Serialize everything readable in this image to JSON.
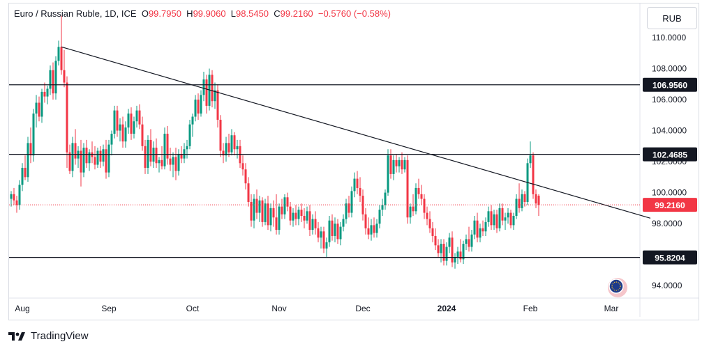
{
  "legend": {
    "title": "Euro / Russian Ruble, 1D, ICE",
    "o_label": "O",
    "o": "99.7950",
    "h_label": "H",
    "h": "99.9060",
    "l_label": "L",
    "l": "98.5450",
    "c_label": "C",
    "c": "99.2160",
    "change": "−0.5760 (−0.58%)"
  },
  "currency_button": "RUB",
  "brand": "TradingView",
  "colors": {
    "up": "#089981",
    "down": "#f23645",
    "line": "#131722",
    "axis_text": "#131722",
    "badge_current": "#f23645"
  },
  "chart_data": {
    "type": "candlestick",
    "ylim": [
      93.2,
      112.2
    ],
    "y_ticks": [
      {
        "value": 110,
        "label": "110.0000"
      },
      {
        "value": 108,
        "label": "108.0000"
      },
      {
        "value": 106,
        "label": "106.0000"
      },
      {
        "value": 104,
        "label": "104.0000"
      },
      {
        "value": 102,
        "label": "102.0000"
      },
      {
        "value": 100,
        "label": "100.0000"
      },
      {
        "value": 98,
        "label": "98.0000"
      },
      {
        "value": 94,
        "label": "94.0000"
      }
    ],
    "x_ticks": [
      {
        "label": "Aug",
        "bar": 4,
        "bold": false
      },
      {
        "label": "Sep",
        "bar": 35,
        "bold": false
      },
      {
        "label": "Oct",
        "bar": 65,
        "bold": false
      },
      {
        "label": "Nov",
        "bar": 96,
        "bold": false
      },
      {
        "label": "Dec",
        "bar": 126,
        "bold": false
      },
      {
        "label": "2024",
        "bar": 156,
        "bold": true
      },
      {
        "label": "Feb",
        "bar": 186,
        "bold": false
      },
      {
        "label": "Mar",
        "bar": 215,
        "bold": false
      }
    ],
    "horizontal_levels": [
      {
        "value": 106.956,
        "label": "106.9560"
      },
      {
        "value": 102.4685,
        "label": "102.4685"
      },
      {
        "value": 95.8204,
        "label": "95.8204"
      }
    ],
    "current_price": {
      "value": 99.216,
      "label": "99.2160"
    },
    "trendline": {
      "from": {
        "bar": 18,
        "value": 109.4
      },
      "to": {
        "bar": 229,
        "value": 98.35
      }
    },
    "ohlc": [
      [
        99.6,
        100.1,
        99.1,
        99.9
      ],
      [
        99.9,
        100.3,
        99.2,
        99.5
      ],
      [
        99.5,
        99.8,
        98.7,
        99.2
      ],
      [
        99.2,
        100.8,
        98.9,
        100.5
      ],
      [
        100.5,
        101.9,
        100.1,
        101.6
      ],
      [
        101.6,
        102.4,
        100.8,
        101.0
      ],
      [
        101.0,
        103.6,
        100.7,
        103.2
      ],
      [
        103.2,
        104.2,
        101.9,
        102.4
      ],
      [
        102.4,
        105.4,
        102.0,
        105.1
      ],
      [
        105.1,
        106.3,
        104.2,
        105.8
      ],
      [
        105.8,
        106.2,
        104.6,
        104.9
      ],
      [
        104.9,
        106.7,
        104.5,
        106.5
      ],
      [
        106.5,
        107.1,
        105.8,
        106.2
      ],
      [
        106.2,
        106.9,
        105.7,
        106.7
      ],
      [
        106.7,
        108.2,
        106.3,
        107.9
      ],
      [
        107.9,
        108.4,
        106.0,
        106.4
      ],
      [
        106.4,
        108.8,
        106.0,
        108.5
      ],
      [
        108.5,
        109.8,
        108.2,
        109.4
      ],
      [
        109.4,
        111.4,
        107.6,
        107.9
      ],
      [
        107.9,
        109.2,
        106.8,
        107.1
      ],
      [
        107.1,
        107.5,
        101.6,
        102.6
      ],
      [
        102.6,
        103.1,
        101.2,
        101.4
      ],
      [
        101.4,
        103.6,
        101.0,
        103.2
      ],
      [
        103.2,
        104.1,
        101.8,
        102.2
      ],
      [
        102.2,
        103.0,
        101.6,
        102.7
      ],
      [
        102.7,
        103.4,
        100.4,
        101.3
      ],
      [
        101.3,
        103.2,
        101.0,
        102.9
      ],
      [
        102.9,
        103.4,
        101.6,
        101.9
      ],
      [
        101.9,
        102.8,
        101.4,
        102.6
      ],
      [
        102.6,
        103.3,
        101.9,
        102.3
      ],
      [
        102.3,
        103.0,
        101.5,
        101.8
      ],
      [
        101.8,
        102.9,
        101.6,
        102.7
      ],
      [
        102.7,
        103.0,
        101.6,
        102.0
      ],
      [
        102.0,
        103.1,
        101.7,
        102.8
      ],
      [
        102.8,
        103.4,
        100.9,
        101.3
      ],
      [
        101.3,
        103.4,
        101.0,
        103.1
      ],
      [
        103.1,
        104.0,
        102.4,
        103.8
      ],
      [
        103.8,
        105.6,
        103.5,
        105.3
      ],
      [
        105.3,
        105.6,
        103.6,
        104.0
      ],
      [
        104.0,
        104.8,
        103.3,
        104.4
      ],
      [
        104.4,
        104.9,
        102.9,
        103.3
      ],
      [
        103.3,
        104.6,
        102.9,
        104.2
      ],
      [
        104.2,
        105.4,
        103.8,
        105.1
      ],
      [
        105.1,
        105.5,
        103.4,
        103.8
      ],
      [
        103.8,
        104.9,
        103.5,
        104.6
      ],
      [
        104.6,
        105.6,
        104.2,
        105.3
      ],
      [
        105.3,
        105.7,
        104.1,
        104.4
      ],
      [
        104.4,
        104.9,
        102.7,
        103.0
      ],
      [
        103.0,
        103.4,
        101.2,
        101.6
      ],
      [
        101.6,
        103.7,
        101.2,
        103.4
      ],
      [
        103.4,
        104.1,
        101.7,
        102.0
      ],
      [
        102.0,
        103.3,
        101.6,
        102.9
      ],
      [
        102.9,
        103.5,
        101.6,
        101.9
      ],
      [
        101.9,
        102.3,
        101.3,
        102.1
      ],
      [
        102.1,
        103.0,
        101.5,
        101.7
      ],
      [
        101.7,
        104.2,
        101.5,
        103.8
      ],
      [
        103.8,
        104.3,
        101.8,
        102.2
      ],
      [
        102.2,
        102.9,
        101.4,
        101.8
      ],
      [
        101.8,
        102.6,
        101.0,
        102.3
      ],
      [
        102.3,
        102.9,
        100.8,
        101.4
      ],
      [
        101.4,
        102.8,
        101.1,
        102.5
      ],
      [
        102.5,
        103.0,
        101.9,
        102.2
      ],
      [
        102.2,
        103.2,
        101.9,
        102.8
      ],
      [
        102.8,
        103.4,
        102.2,
        103.0
      ],
      [
        103.0,
        104.7,
        102.8,
        104.4
      ],
      [
        104.4,
        105.1,
        103.6,
        104.9
      ],
      [
        104.9,
        106.3,
        104.6,
        106.0
      ],
      [
        106.0,
        106.4,
        104.7,
        105.1
      ],
      [
        105.1,
        106.6,
        104.9,
        106.3
      ],
      [
        106.3,
        107.8,
        105.9,
        107.3
      ],
      [
        107.3,
        107.6,
        105.1,
        105.6
      ],
      [
        105.6,
        108.0,
        105.3,
        107.6
      ],
      [
        107.6,
        107.9,
        105.5,
        105.9
      ],
      [
        105.9,
        107.1,
        105.4,
        106.6
      ],
      [
        106.6,
        107.0,
        104.2,
        104.7
      ],
      [
        104.7,
        105.0,
        102.3,
        102.7
      ],
      [
        102.7,
        103.2,
        101.9,
        102.4
      ],
      [
        102.4,
        103.6,
        102.0,
        103.2
      ],
      [
        103.2,
        103.8,
        102.3,
        102.6
      ],
      [
        102.6,
        104.1,
        102.4,
        103.7
      ],
      [
        103.7,
        103.9,
        102.4,
        102.8
      ],
      [
        102.8,
        103.4,
        102.2,
        103.0
      ],
      [
        103.0,
        103.4,
        101.6,
        101.9
      ],
      [
        101.9,
        102.4,
        101.1,
        101.5
      ],
      [
        101.5,
        101.9,
        100.2,
        100.6
      ],
      [
        100.6,
        101.0,
        99.1,
        99.4
      ],
      [
        99.4,
        99.9,
        97.8,
        98.2
      ],
      [
        98.2,
        99.9,
        97.7,
        99.6
      ],
      [
        99.6,
        100.2,
        98.3,
        98.7
      ],
      [
        98.7,
        99.8,
        98.1,
        99.5
      ],
      [
        99.5,
        99.7,
        97.8,
        98.1
      ],
      [
        98.1,
        99.6,
        97.9,
        99.3
      ],
      [
        99.3,
        99.8,
        97.6,
        97.9
      ],
      [
        97.9,
        99.3,
        97.5,
        99.0
      ],
      [
        99.0,
        99.5,
        97.8,
        98.4
      ],
      [
        98.4,
        99.9,
        97.3,
        97.6
      ],
      [
        97.6,
        99.3,
        97.3,
        99.1
      ],
      [
        99.1,
        99.6,
        98.3,
        98.6
      ],
      [
        98.6,
        99.9,
        98.3,
        99.7
      ],
      [
        99.7,
        100.0,
        98.8,
        99.1
      ],
      [
        99.1,
        99.4,
        97.9,
        98.2
      ],
      [
        98.2,
        99.0,
        97.8,
        98.7
      ],
      [
        98.7,
        99.2,
        97.9,
        98.3
      ],
      [
        98.3,
        99.1,
        97.9,
        98.9
      ],
      [
        98.9,
        99.3,
        98.1,
        98.5
      ],
      [
        98.5,
        99.0,
        97.7,
        98.2
      ],
      [
        98.2,
        99.1,
        98.0,
        98.8
      ],
      [
        98.8,
        99.2,
        97.2,
        97.6
      ],
      [
        97.6,
        98.6,
        97.3,
        98.3
      ],
      [
        98.3,
        98.8,
        97.3,
        97.7
      ],
      [
        97.7,
        98.1,
        96.8,
        97.1
      ],
      [
        97.1,
        97.8,
        96.4,
        97.5
      ],
      [
        97.5,
        97.8,
        96.1,
        96.4
      ],
      [
        96.4,
        97.1,
        95.8,
        96.8
      ],
      [
        96.8,
        98.5,
        96.5,
        98.2
      ],
      [
        98.2,
        98.6,
        96.9,
        97.2
      ],
      [
        97.2,
        98.4,
        96.8,
        98.0
      ],
      [
        98.0,
        98.3,
        96.7,
        97.0
      ],
      [
        97.0,
        98.1,
        96.6,
        97.8
      ],
      [
        97.8,
        98.6,
        97.5,
        98.3
      ],
      [
        98.3,
        99.6,
        98.0,
        99.3
      ],
      [
        99.3,
        99.8,
        98.4,
        98.7
      ],
      [
        98.7,
        100.4,
        98.4,
        100.1
      ],
      [
        100.1,
        101.3,
        99.7,
        100.9
      ],
      [
        100.9,
        101.4,
        99.9,
        100.3
      ],
      [
        100.3,
        101.0,
        99.4,
        99.8
      ],
      [
        99.8,
        100.2,
        98.2,
        98.6
      ],
      [
        98.6,
        99.0,
        97.3,
        97.7
      ],
      [
        97.7,
        98.4,
        97.0,
        97.3
      ],
      [
        97.3,
        98.3,
        96.9,
        97.9
      ],
      [
        97.9,
        98.4,
        97.1,
        97.4
      ],
      [
        97.4,
        98.3,
        97.1,
        98.0
      ],
      [
        98.0,
        99.2,
        97.7,
        98.9
      ],
      [
        98.9,
        99.6,
        98.5,
        99.2
      ],
      [
        99.2,
        100.2,
        98.9,
        100.0
      ],
      [
        100.0,
        102.8,
        99.8,
        102.4
      ],
      [
        102.4,
        102.8,
        100.9,
        101.2
      ],
      [
        101.2,
        102.4,
        100.8,
        102.1
      ],
      [
        102.1,
        102.5,
        101.3,
        101.7
      ],
      [
        101.7,
        102.3,
        101.3,
        102.1
      ],
      [
        102.1,
        102.6,
        101.2,
        101.5
      ],
      [
        101.5,
        102.3,
        101.3,
        102.1
      ],
      [
        102.1,
        102.4,
        98.0,
        98.4
      ],
      [
        98.4,
        99.3,
        98.0,
        99.1
      ],
      [
        99.1,
        99.9,
        98.5,
        98.8
      ],
      [
        98.8,
        100.6,
        98.6,
        100.3
      ],
      [
        100.3,
        100.9,
        99.6,
        99.9
      ],
      [
        99.9,
        100.5,
        99.2,
        99.6
      ],
      [
        99.6,
        99.9,
        98.3,
        98.7
      ],
      [
        98.7,
        99.1,
        97.9,
        98.3
      ],
      [
        98.3,
        98.8,
        97.4,
        97.7
      ],
      [
        97.7,
        98.1,
        96.8,
        97.2
      ],
      [
        97.2,
        97.7,
        96.3,
        96.6
      ],
      [
        96.6,
        97.0,
        95.8,
        96.1
      ],
      [
        96.1,
        97.0,
        95.5,
        96.7
      ],
      [
        96.7,
        97.0,
        95.3,
        95.6
      ],
      [
        95.6,
        96.8,
        95.3,
        96.5
      ],
      [
        96.5,
        97.4,
        96.1,
        97.1
      ],
      [
        97.1,
        97.5,
        95.2,
        95.5
      ],
      [
        95.5,
        96.1,
        95.1,
        95.8
      ],
      [
        95.8,
        96.5,
        95.4,
        96.2
      ],
      [
        96.2,
        97.0,
        95.5,
        95.7
      ],
      [
        95.7,
        96.9,
        95.4,
        96.7
      ],
      [
        96.7,
        97.3,
        96.3,
        97.0
      ],
      [
        97.0,
        97.8,
        96.2,
        96.5
      ],
      [
        96.5,
        97.6,
        96.2,
        97.3
      ],
      [
        97.3,
        98.5,
        97.0,
        98.2
      ],
      [
        98.2,
        98.7,
        96.8,
        97.1
      ],
      [
        97.1,
        98.0,
        96.8,
        97.7
      ],
      [
        97.7,
        98.2,
        97.2,
        97.5
      ],
      [
        97.5,
        98.4,
        97.2,
        98.1
      ],
      [
        98.1,
        99.1,
        97.8,
        98.8
      ],
      [
        98.8,
        99.2,
        97.6,
        97.9
      ],
      [
        97.9,
        98.9,
        97.6,
        98.6
      ],
      [
        98.6,
        98.9,
        97.4,
        97.7
      ],
      [
        97.7,
        99.3,
        97.5,
        99.0
      ],
      [
        99.0,
        99.3,
        97.9,
        98.2
      ],
      [
        98.2,
        98.7,
        97.6,
        98.4
      ],
      [
        98.4,
        99.0,
        98.0,
        98.7
      ],
      [
        98.7,
        98.9,
        97.7,
        97.9
      ],
      [
        97.9,
        98.7,
        97.6,
        98.5
      ],
      [
        98.5,
        99.9,
        98.3,
        99.6
      ],
      [
        99.6,
        100.6,
        98.7,
        99.0
      ],
      [
        99.0,
        100.2,
        98.8,
        99.9
      ],
      [
        99.9,
        100.1,
        99.1,
        99.4
      ],
      [
        99.4,
        102.2,
        99.2,
        101.9
      ],
      [
        101.9,
        103.3,
        101.6,
        102.4
      ],
      [
        102.4,
        102.6,
        99.6,
        99.9
      ],
      [
        99.9,
        100.2,
        99.0,
        99.3
      ],
      [
        99.8,
        99.9,
        98.5,
        99.2
      ]
    ]
  }
}
